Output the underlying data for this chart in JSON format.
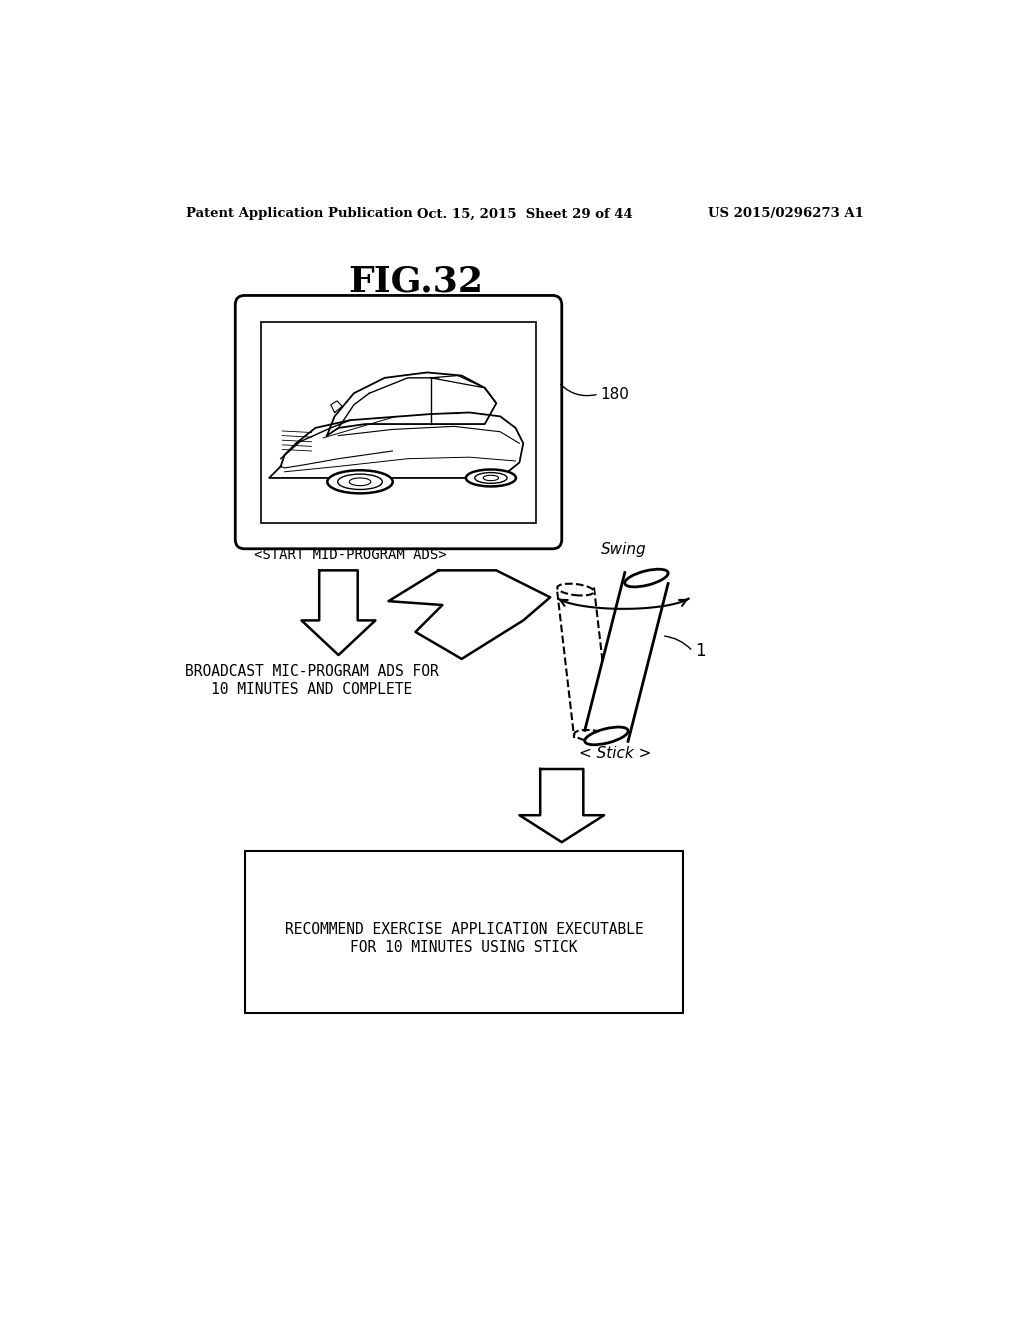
{
  "bg_color": "#ffffff",
  "header_left": "Patent Application Publication",
  "header_mid": "Oct. 15, 2015  Sheet 29 of 44",
  "header_right": "US 2015/0296273 A1",
  "fig_title": "FIG.32",
  "screen_label": "180",
  "start_ads_label": "<START MID-PROGRAM ADS>",
  "broadcast_label": "BROADCAST MIC-PROGRAM ADS FOR\n10 MINUTES AND COMPLETE",
  "stick_label": "< Stick >",
  "swing_label": "Swing",
  "stick_ref": "1",
  "bottom_box_label": "RECOMMEND EXERCISE APPLICATION EXECUTABLE\nFOR 10 MINUTES USING STICK",
  "text_color": "#000000",
  "line_color": "#000000"
}
